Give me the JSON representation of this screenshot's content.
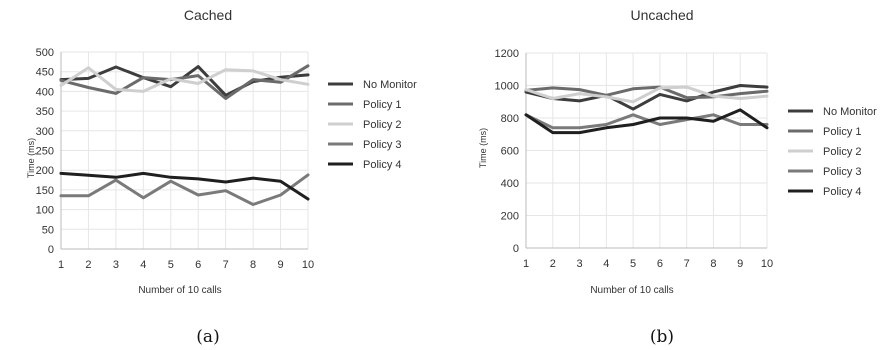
{
  "chart_data": [
    {
      "type": "line",
      "title": "Cached",
      "xlabel": "Number of 10 calls",
      "ylabel": "Time (ms)",
      "x": [
        1,
        2,
        3,
        4,
        5,
        6,
        7,
        8,
        9,
        10
      ],
      "xlim": [
        1,
        10
      ],
      "ylim": [
        0,
        500
      ],
      "yticks": [
        0,
        50,
        100,
        150,
        200,
        250,
        300,
        350,
        400,
        450,
        500
      ],
      "xticks": [
        1,
        2,
        3,
        4,
        5,
        6,
        7,
        8,
        9,
        10
      ],
      "grid": true,
      "legend_position": "right",
      "caption": "(a)",
      "series": [
        {
          "name": "No Monitor",
          "color": "#3d3d3d",
          "values": [
            430,
            433,
            462,
            435,
            412,
            463,
            390,
            425,
            436,
            442
          ]
        },
        {
          "name": "Policy 1",
          "color": "#6b6b6b",
          "values": [
            428,
            410,
            395,
            435,
            430,
            440,
            382,
            430,
            423,
            465
          ]
        },
        {
          "name": "Policy 2",
          "color": "#cfcfcf",
          "values": [
            415,
            460,
            405,
            400,
            432,
            420,
            455,
            452,
            430,
            418
          ]
        },
        {
          "name": "Policy 3",
          "color": "#7a7a7a",
          "values": [
            135,
            135,
            175,
            130,
            172,
            137,
            148,
            113,
            137,
            188
          ]
        },
        {
          "name": "Policy 4",
          "color": "#1f1f1f",
          "values": [
            192,
            187,
            182,
            192,
            182,
            178,
            170,
            180,
            172,
            127
          ]
        }
      ]
    },
    {
      "type": "line",
      "title": "Uncached",
      "xlabel": "Number of 10 calls",
      "ylabel": "Time (ms)",
      "x": [
        1,
        2,
        3,
        4,
        5,
        6,
        7,
        8,
        9,
        10
      ],
      "xlim": [
        1,
        10
      ],
      "ylim": [
        0,
        1200
      ],
      "yticks": [
        0,
        200,
        400,
        600,
        800,
        1000,
        1200
      ],
      "xticks": [
        1,
        2,
        3,
        4,
        5,
        6,
        7,
        8,
        9,
        10
      ],
      "grid": true,
      "legend_position": "right",
      "caption": "(b)",
      "series": [
        {
          "name": "No Monitor",
          "color": "#3d3d3d",
          "values": [
            960,
            920,
            905,
            940,
            855,
            945,
            905,
            960,
            1000,
            990
          ]
        },
        {
          "name": "Policy 1",
          "color": "#6b6b6b",
          "values": [
            970,
            985,
            975,
            940,
            980,
            990,
            925,
            930,
            950,
            965
          ]
        },
        {
          "name": "Policy 2",
          "color": "#cfcfcf",
          "values": [
            975,
            920,
            950,
            930,
            900,
            985,
            990,
            935,
            920,
            935
          ]
        },
        {
          "name": "Policy 3",
          "color": "#7a7a7a",
          "values": [
            820,
            740,
            740,
            760,
            820,
            760,
            790,
            820,
            760,
            760
          ]
        },
        {
          "name": "Policy 4",
          "color": "#1f1f1f",
          "values": [
            820,
            710,
            710,
            740,
            760,
            800,
            800,
            780,
            850,
            740
          ]
        }
      ]
    }
  ]
}
